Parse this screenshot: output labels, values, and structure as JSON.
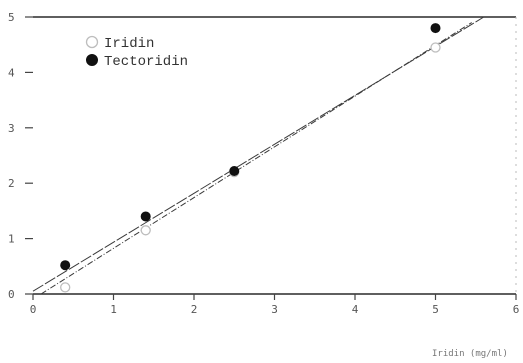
{
  "chart_data": {
    "type": "scatter",
    "title": "",
    "xlabel": "Iridin (mg/ml)",
    "ylabel": "",
    "xlim": [
      0,
      6
    ],
    "ylim": [
      0,
      5
    ],
    "xticks": [
      0,
      1,
      2,
      3,
      4,
      5,
      6
    ],
    "yticks": [
      0,
      1,
      2,
      3,
      4,
      5
    ],
    "grid": false,
    "legend_position": "top-left",
    "series": [
      {
        "name": "Iridin",
        "marker": "open-circle",
        "color": "#bdbdbd",
        "x": [
          0.4,
          1.4,
          2.5,
          5.0
        ],
        "y": [
          0.12,
          1.15,
          2.2,
          4.45
        ],
        "fit": {
          "x": [
            0.1,
            5.45
          ],
          "y": [
            0.0,
            4.9
          ]
        }
      },
      {
        "name": "Tectoridin",
        "marker": "filled-circle",
        "color": "#111111",
        "x": [
          0.4,
          1.4,
          2.5,
          5.0
        ],
        "y": [
          0.52,
          1.4,
          2.22,
          4.8
        ],
        "fit": {
          "x": [
            0.0,
            5.6
          ],
          "y": [
            0.05,
            5.0
          ]
        }
      }
    ]
  }
}
